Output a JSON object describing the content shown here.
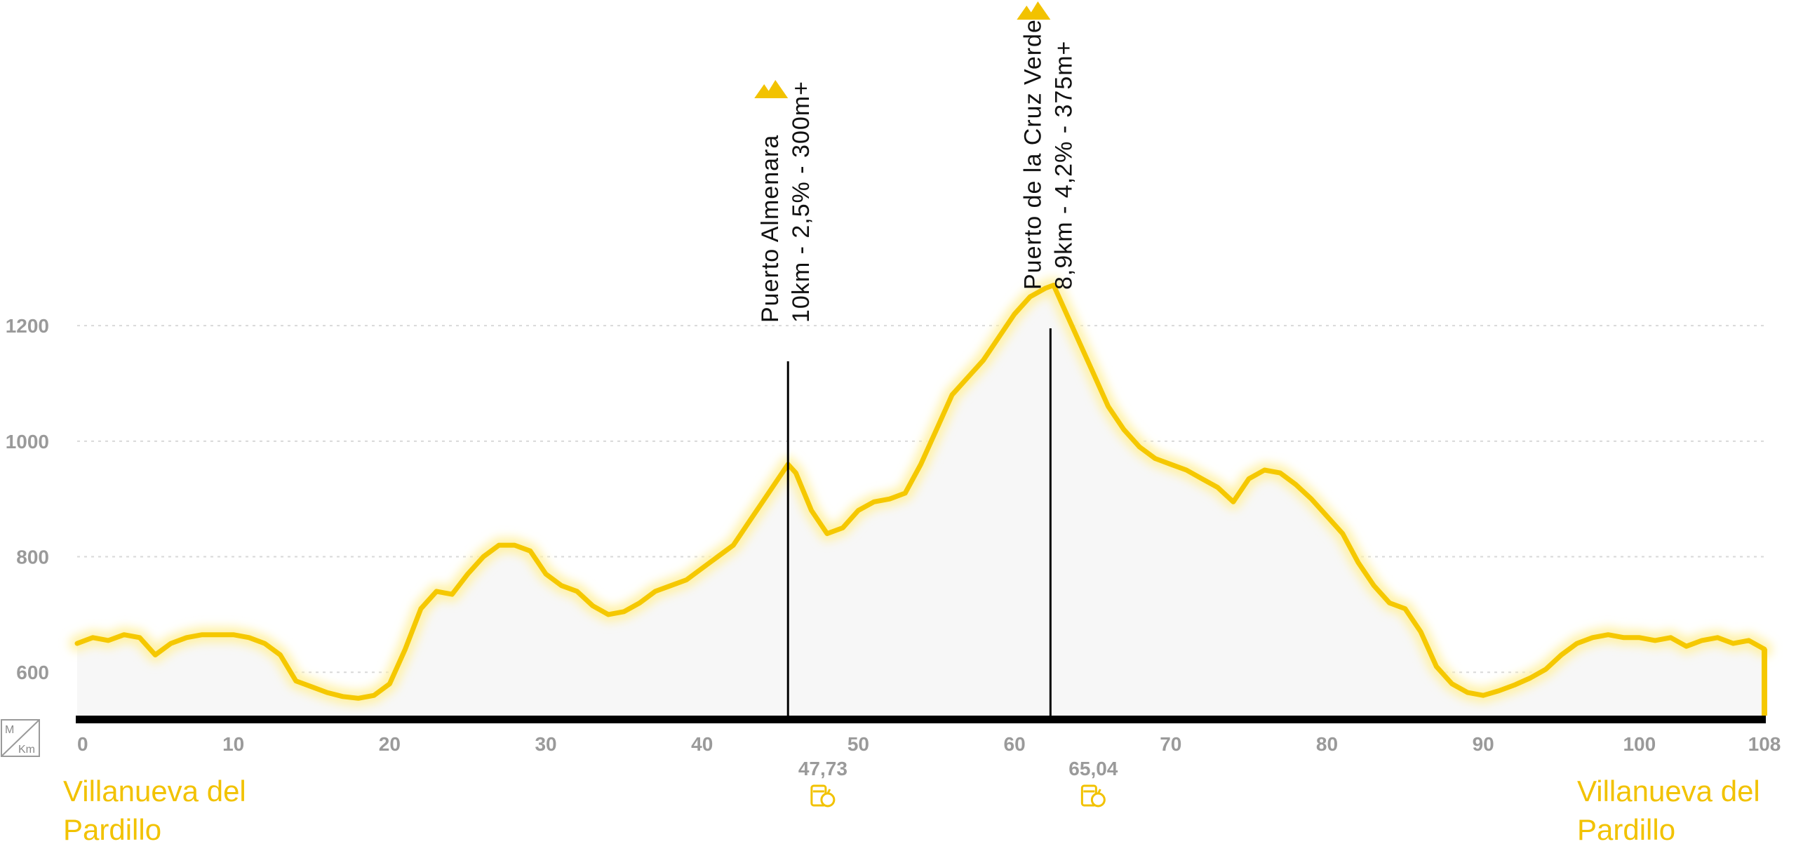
{
  "chart_data": {
    "type": "area",
    "title": "",
    "xlabel": "Km",
    "ylabel": "M",
    "xlim": [
      0,
      108
    ],
    "ylim": [
      525,
      1290
    ],
    "x_ticks": [
      "0",
      "10",
      "20",
      "30",
      "40",
      "50",
      "60",
      "70",
      "80",
      "90",
      "100",
      "108"
    ],
    "y_ticks": [
      "600",
      "800",
      "1000",
      "1200"
    ],
    "grid": true,
    "series": [
      {
        "x": [
          0,
          1,
          2,
          3,
          4,
          5,
          6,
          7,
          8,
          9,
          10,
          11,
          12,
          13,
          14,
          15,
          16,
          17,
          18,
          19,
          20,
          21,
          22,
          23,
          24,
          25,
          26,
          27,
          28,
          29,
          30,
          31,
          32,
          33,
          34,
          35,
          36,
          37,
          38,
          39,
          40,
          41,
          42,
          43,
          44,
          45,
          45.5,
          46,
          47,
          48,
          49,
          50,
          51,
          52,
          53,
          54,
          55,
          56,
          57,
          58,
          59,
          60,
          61,
          62,
          62.5,
          63,
          64,
          65,
          66,
          67,
          68,
          69,
          70,
          71,
          72,
          73,
          74,
          75,
          76,
          77,
          78,
          79,
          80,
          81,
          82,
          83,
          84,
          85,
          86,
          87,
          88,
          89,
          90,
          91,
          92,
          93,
          94,
          95,
          96,
          97,
          98,
          99,
          100,
          101,
          102,
          103,
          104,
          105,
          106,
          107,
          108
        ],
        "values": [
          650,
          660,
          655,
          665,
          660,
          630,
          650,
          660,
          665,
          665,
          665,
          660,
          650,
          630,
          585,
          575,
          565,
          558,
          555,
          560,
          580,
          640,
          710,
          740,
          735,
          770,
          800,
          820,
          820,
          810,
          770,
          750,
          740,
          715,
          700,
          705,
          720,
          740,
          750,
          760,
          780,
          800,
          820,
          860,
          900,
          940,
          960,
          945,
          880,
          840,
          850,
          880,
          895,
          900,
          910,
          960,
          1020,
          1080,
          1110,
          1140,
          1180,
          1220,
          1250,
          1265,
          1270,
          1240,
          1180,
          1120,
          1060,
          1020,
          990,
          970,
          960,
          950,
          935,
          920,
          895,
          935,
          950,
          945,
          925,
          900,
          870,
          840,
          790,
          750,
          720,
          710,
          670,
          610,
          580,
          565,
          560,
          568,
          578,
          590,
          605,
          630,
          650,
          660,
          665,
          660,
          660,
          655,
          660,
          645,
          655,
          660,
          650,
          655,
          640
        ]
      }
    ],
    "climbs": [
      {
        "name": "Puerto Almenara",
        "detail": "10km - 2,5% - 300m+",
        "km": 45.5
      },
      {
        "name": "Puerto de la Cruz Verde",
        "detail": "8,9km - 4,2% - 375m+",
        "km": 62.3
      }
    ],
    "feed_zones": [
      "47,73",
      "65,04"
    ],
    "feed_zone_km": [
      47.73,
      65.04
    ],
    "start_place": "Villanueva del Pardillo",
    "finish_place": "Villanueva del Pardillo",
    "colors": {
      "profile": "#f5c800",
      "profile_glow": "#fff2a8",
      "fill": "#f7f7f7",
      "baseline": "#000000",
      "text_accent": "#f2c200"
    }
  },
  "labels": {
    "unit_m": "M",
    "unit_km": "Km",
    "start_line1": "Villanueva del",
    "start_line2": "Pardillo",
    "finish_line1": "Villanueva del",
    "finish_line2": "Pardillo"
  }
}
